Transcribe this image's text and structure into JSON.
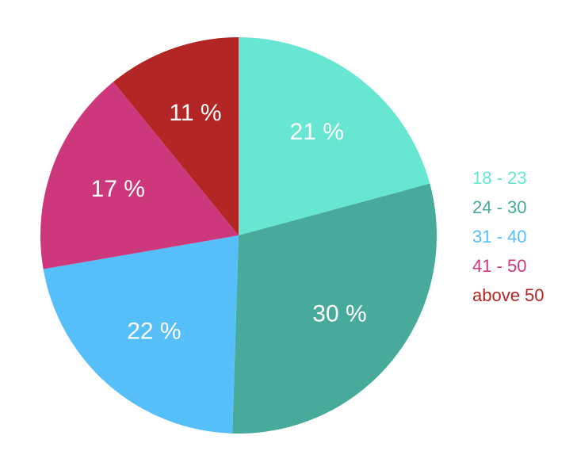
{
  "chart_data": {
    "type": "pie",
    "categories": [
      "18 - 23",
      "24 - 30",
      "31 - 40",
      "41 - 50",
      "above 50"
    ],
    "values": [
      21,
      30,
      22,
      17,
      11
    ],
    "value_labels": [
      "21 %",
      "30 %",
      "22 %",
      "17 %",
      "11 %"
    ],
    "colors": [
      "#67e6d2",
      "#48aa9a",
      "#56bff9",
      "#cc387b",
      "#b22726"
    ],
    "legend": "right"
  }
}
